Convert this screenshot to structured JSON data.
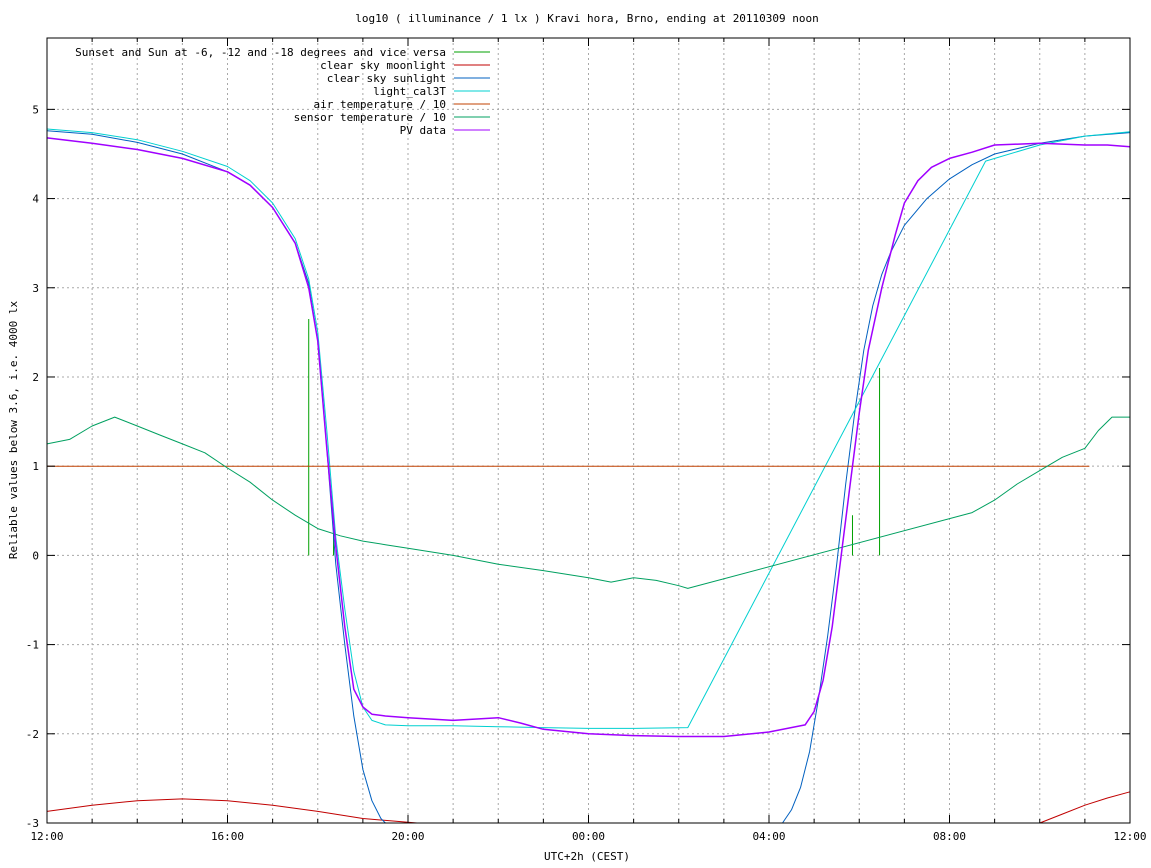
{
  "chart_data": {
    "type": "line",
    "title": "log10 ( illuminance / 1 lx ) Kravi hora, Brno, ending at 20110309 noon",
    "xlabel": "UTC+2h (CEST)",
    "ylabel": "Reliable values below 3.6, i.e. 4000 lx",
    "xlim": [
      0,
      24
    ],
    "ylim": [
      -3,
      5.8
    ],
    "grid": true,
    "legend_position": "top-left",
    "x_ticks": [
      {
        "value": 0,
        "label": "12:00"
      },
      {
        "value": 4,
        "label": "16:00"
      },
      {
        "value": 8,
        "label": "20:00"
      },
      {
        "value": 12,
        "label": "00:00"
      },
      {
        "value": 16,
        "label": "04:00"
      },
      {
        "value": 20,
        "label": "08:00"
      },
      {
        "value": 24,
        "label": "12:00"
      }
    ],
    "x_minor_grid_step": 1,
    "y_ticks": [
      {
        "value": -3,
        "label": "-3"
      },
      {
        "value": -2,
        "label": "-2"
      },
      {
        "value": -1,
        "label": "-1"
      },
      {
        "value": 0,
        "label": "0"
      },
      {
        "value": 1,
        "label": "1"
      },
      {
        "value": 2,
        "label": "2"
      },
      {
        "value": 3,
        "label": "3"
      },
      {
        "value": 4,
        "label": "4"
      },
      {
        "value": 5,
        "label": "5"
      }
    ],
    "series": [
      {
        "name": "Sunset and Sun at -6, -12 and -18 degrees and vice versa",
        "color": "#00a000",
        "style": "impulses",
        "impulses": [
          {
            "x": 5.8,
            "y": 2.65
          },
          {
            "x": 6.35,
            "y": 0.25
          },
          {
            "x": 6.95,
            "y": 0.0
          },
          {
            "x": 7.6,
            "y": 0.0
          },
          {
            "x": 16.6,
            "y": 0.0
          },
          {
            "x": 17.25,
            "y": 0.0
          },
          {
            "x": 17.85,
            "y": 0.45
          },
          {
            "x": 18.45,
            "y": 2.1
          }
        ]
      },
      {
        "name": "clear sky moonlight",
        "color": "#c00000",
        "segments": [
          {
            "x": [
              0,
              1,
              2,
              3,
              4,
              5,
              6,
              7,
              8.2
            ],
            "y": [
              -2.87,
              -2.8,
              -2.75,
              -2.73,
              -2.75,
              -2.8,
              -2.87,
              -2.95,
              -3.0
            ]
          },
          {
            "x": [
              22,
              22.5,
              23,
              23.5,
              24
            ],
            "y": [
              -3.0,
              -2.9,
              -2.8,
              -2.72,
              -2.65
            ]
          }
        ]
      },
      {
        "name": "clear sky sunlight",
        "color": "#0060c0",
        "segments": [
          {
            "x": [
              0,
              1,
              2,
              3,
              4,
              4.5,
              5,
              5.5,
              5.8,
              6.0,
              6.2,
              6.4,
              6.6,
              6.8,
              7.0,
              7.2,
              7.4,
              7.5
            ],
            "y": [
              4.76,
              4.72,
              4.63,
              4.5,
              4.3,
              4.15,
              3.9,
              3.5,
              3.05,
              2.4,
              1.2,
              -0.1,
              -1.0,
              -1.8,
              -2.4,
              -2.75,
              -2.95,
              -3.0
            ]
          },
          {
            "x": [
              16.3,
              16.5,
              16.7,
              16.9,
              17.1,
              17.3,
              17.5,
              17.7,
              17.9,
              18.1,
              18.3,
              18.5,
              18.7,
              19.0,
              19.5,
              20.0,
              20.5,
              21.0,
              22.0,
              23.0,
              24.0
            ],
            "y": [
              -3.0,
              -2.85,
              -2.6,
              -2.2,
              -1.6,
              -0.9,
              -0.1,
              0.8,
              1.6,
              2.3,
              2.8,
              3.15,
              3.4,
              3.7,
              4.0,
              4.22,
              4.38,
              4.5,
              4.62,
              4.7,
              4.74
            ]
          }
        ]
      },
      {
        "name": "light_cal3T",
        "color": "#00d0d0",
        "segments": [
          {
            "x": [
              0,
              1,
              2,
              3,
              4,
              4.5,
              5,
              5.5,
              5.8,
              6.0,
              6.2,
              6.4,
              6.6,
              6.8,
              7.0,
              7.2,
              7.5,
              8.0,
              9,
              10,
              11,
              12,
              13,
              14.2,
              20.8,
              22,
              23,
              24
            ],
            "y": [
              4.78,
              4.74,
              4.66,
              4.53,
              4.36,
              4.2,
              3.95,
              3.55,
              3.1,
              2.5,
              1.4,
              0.2,
              -0.6,
              -1.3,
              -1.7,
              -1.85,
              -1.9,
              -1.91,
              -1.91,
              -1.92,
              -1.93,
              -1.94,
              -1.94,
              -1.93,
              4.42,
              4.6,
              4.7,
              4.75
            ]
          }
        ]
      },
      {
        "name": "air temperature / 10",
        "color": "#c04000",
        "segments": [
          {
            "x": [
              0,
              23.1
            ],
            "y": [
              1.0,
              1.0
            ]
          }
        ]
      },
      {
        "name": "sensor temperature / 10",
        "color": "#00a060",
        "segments": [
          {
            "x": [
              0,
              0.5,
              1.0,
              1.5,
              2.0,
              2.5,
              3.0,
              3.5,
              4.0,
              4.5,
              5.0,
              5.5,
              6.0,
              6.5,
              7.0,
              7.5,
              8.0,
              9.0,
              10.0,
              11.0,
              12.0,
              12.5,
              13.0,
              13.5,
              14.0,
              14.2,
              20.5,
              21.0,
              21.5,
              22.0,
              22.5,
              23.0,
              23.3,
              23.6,
              24.0
            ],
            "y": [
              1.25,
              1.3,
              1.45,
              1.55,
              1.45,
              1.35,
              1.25,
              1.15,
              0.98,
              0.82,
              0.62,
              0.45,
              0.3,
              0.22,
              0.16,
              0.12,
              0.08,
              0.0,
              -0.1,
              -0.17,
              -0.25,
              -0.3,
              -0.25,
              -0.28,
              -0.34,
              -0.37,
              0.48,
              0.62,
              0.8,
              0.95,
              1.1,
              1.2,
              1.4,
              1.55,
              1.55
            ]
          }
        ]
      },
      {
        "name": "PV data",
        "color": "#a000ff",
        "segments": [
          {
            "x": [
              0,
              1,
              2,
              3,
              4,
              4.5,
              5,
              5.5,
              5.8,
              6.0,
              6.2,
              6.4,
              6.6,
              6.8,
              7.0,
              7.2,
              7.5,
              8.0,
              9.0,
              10.0,
              10.5,
              11.0,
              12.0,
              13.0,
              14.0,
              15.0,
              16.0,
              16.8,
              17.0,
              17.2,
              17.4,
              17.6,
              17.8,
              18.0,
              18.2,
              18.5,
              18.8,
              19.0,
              19.3,
              19.6,
              20.0,
              20.5,
              21.0,
              22.0,
              23.0,
              23.5,
              24.0
            ],
            "y": [
              4.68,
              4.62,
              4.55,
              4.45,
              4.3,
              4.15,
              3.9,
              3.5,
              3.0,
              2.4,
              1.2,
              0.1,
              -0.8,
              -1.5,
              -1.7,
              -1.78,
              -1.8,
              -1.82,
              -1.85,
              -1.82,
              -1.88,
              -1.95,
              -2.0,
              -2.02,
              -2.03,
              -2.03,
              -1.98,
              -1.9,
              -1.75,
              -1.4,
              -0.8,
              0.0,
              0.8,
              1.6,
              2.3,
              3.0,
              3.6,
              3.95,
              4.2,
              4.35,
              4.45,
              4.52,
              4.6,
              4.62,
              4.6,
              4.6,
              4.58
            ]
          }
        ]
      }
    ]
  }
}
